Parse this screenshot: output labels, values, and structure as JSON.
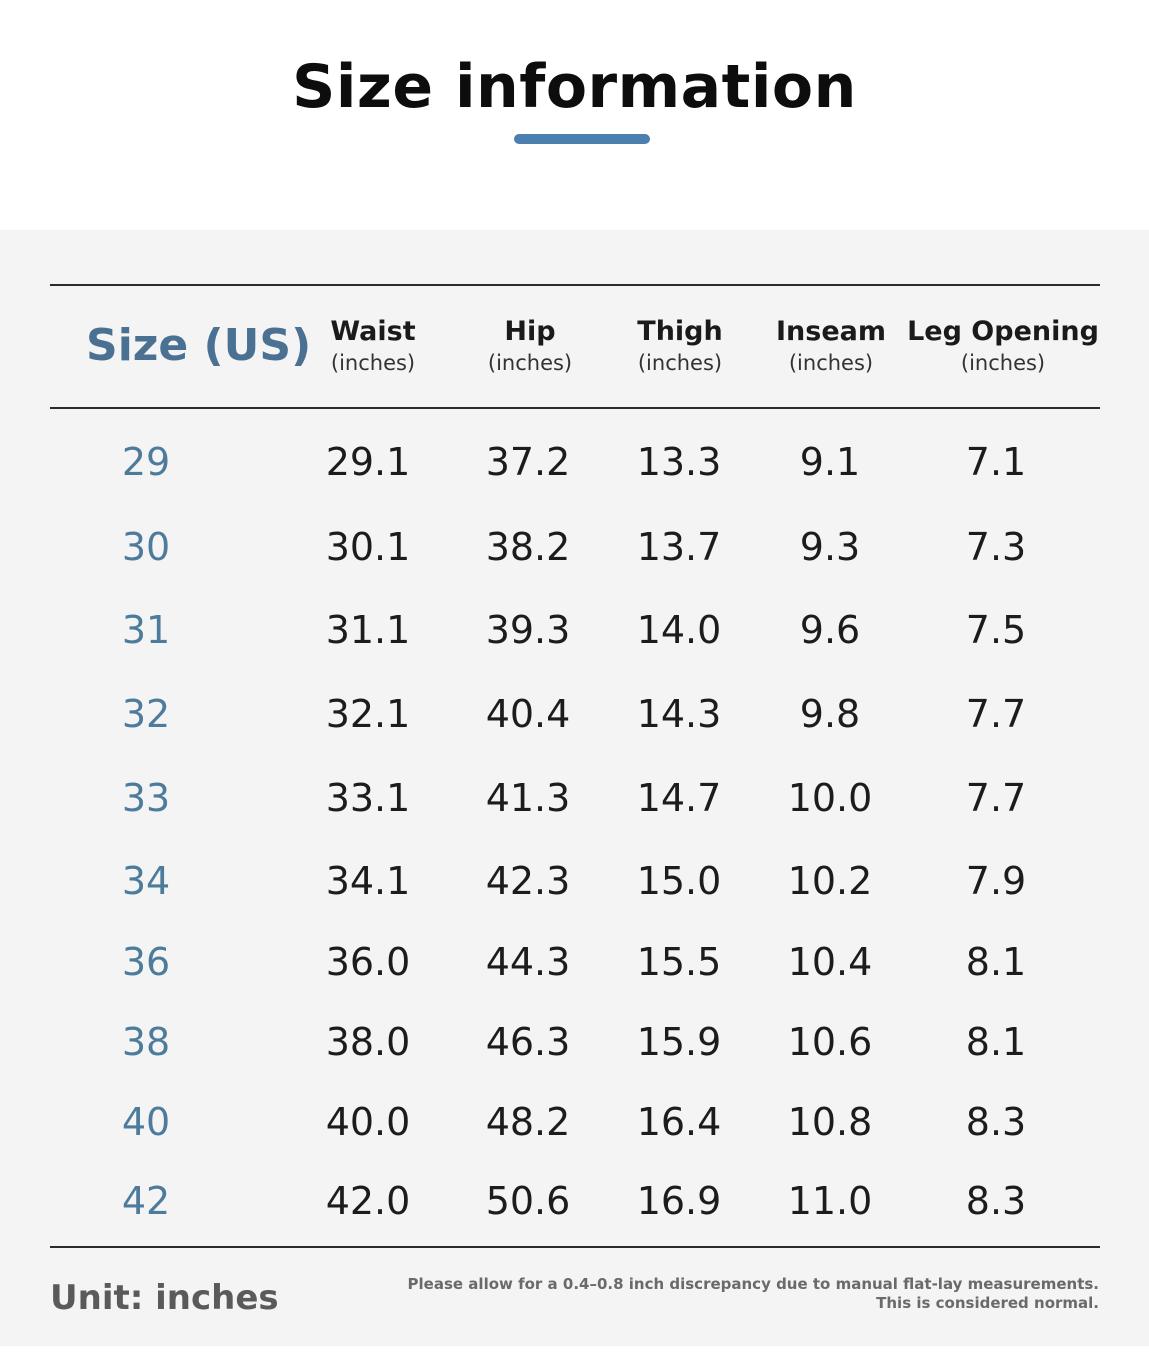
{
  "title": "Size information",
  "accent_color": "#4a7fb0",
  "size_color": "#4d7b9c",
  "table": {
    "size_header": "Size (US)",
    "columns": [
      {
        "name": "Waist",
        "unit": "(inches)"
      },
      {
        "name": "Hip",
        "unit": "(inches)"
      },
      {
        "name": "Thigh",
        "unit": "(inches)"
      },
      {
        "name": "Inseam",
        "unit": "(inches)"
      },
      {
        "name": "Leg Opening",
        "unit": "(inches)"
      }
    ],
    "rows": [
      {
        "size": "29",
        "values": [
          "29.1",
          "37.2",
          "13.3",
          "9.1",
          "7.1"
        ]
      },
      {
        "size": "30",
        "values": [
          "30.1",
          "38.2",
          "13.7",
          "9.3",
          "7.3"
        ]
      },
      {
        "size": "31",
        "values": [
          "31.1",
          "39.3",
          "14.0",
          "9.6",
          "7.5"
        ]
      },
      {
        "size": "32",
        "values": [
          "32.1",
          "40.4",
          "14.3",
          "9.8",
          "7.7"
        ]
      },
      {
        "size": "33",
        "values": [
          "33.1",
          "41.3",
          "14.7",
          "10.0",
          "7.7"
        ]
      },
      {
        "size": "34",
        "values": [
          "34.1",
          "42.3",
          "15.0",
          "10.2",
          "7.9"
        ]
      },
      {
        "size": "36",
        "values": [
          "36.0",
          "44.3",
          "15.5",
          "10.4",
          "8.1"
        ]
      },
      {
        "size": "38",
        "values": [
          "38.0",
          "46.3",
          "15.9",
          "10.6",
          "8.1"
        ]
      },
      {
        "size": "40",
        "values": [
          "40.0",
          "48.2",
          "16.4",
          "10.8",
          "8.3"
        ]
      },
      {
        "size": "42",
        "values": [
          "42.0",
          "50.6",
          "16.9",
          "11.0",
          "8.3"
        ]
      }
    ]
  },
  "footer": {
    "unit_note": "Unit: inches",
    "disclaimer_line1": "Please allow for a 0.4–0.8 inch discrepancy due to manual flat-lay measurements.",
    "disclaimer_line2": "This is considered normal."
  }
}
